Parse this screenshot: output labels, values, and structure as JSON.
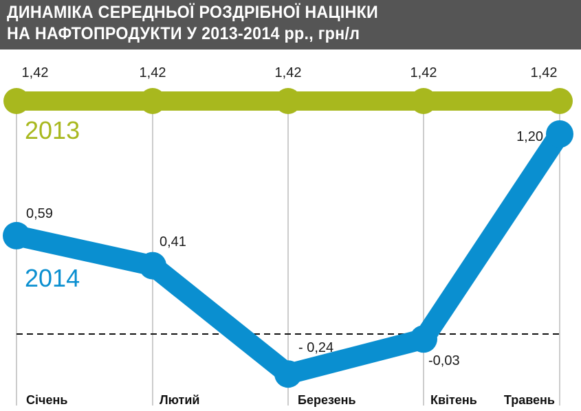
{
  "header": {
    "title_line1": "ДИНАМІКА СЕРЕДНЬОЇ РОЗДРІБНОЇ НАЦІНКИ",
    "title_line2": "НА НАФТОПРОДУКТИ У 2013-2014 рр., грн/л",
    "background_color": "#555555"
  },
  "chart_data": {
    "type": "line",
    "title": "ДИНАМІКА СЕРЕДНЬОЇ РОЗДРІБНОЇ НАЦІНКИ НА НАФТОПРОДУКТИ У 2013-2014 рр., грн/л",
    "categories": [
      "Січень",
      "Лютий",
      "Березень",
      "Квітень",
      "Травень"
    ],
    "series": [
      {
        "name": "2013",
        "values": [
          1.42,
          1.42,
          1.42,
          1.42,
          1.42
        ],
        "labels": [
          "1,42",
          "1,42",
          "1,42",
          "1,42",
          "1,42"
        ],
        "color": "#a8b81e"
      },
      {
        "name": "2014",
        "values": [
          0.59,
          0.41,
          -0.24,
          -0.03,
          1.2
        ],
        "labels": [
          "0,59",
          "0,41",
          "- 0,24",
          "-0,03",
          "1,20"
        ],
        "color": "#0a8fd0"
      }
    ],
    "zero_line": "dashed",
    "grid": "vertical",
    "xlabel": "",
    "ylabel": ""
  }
}
